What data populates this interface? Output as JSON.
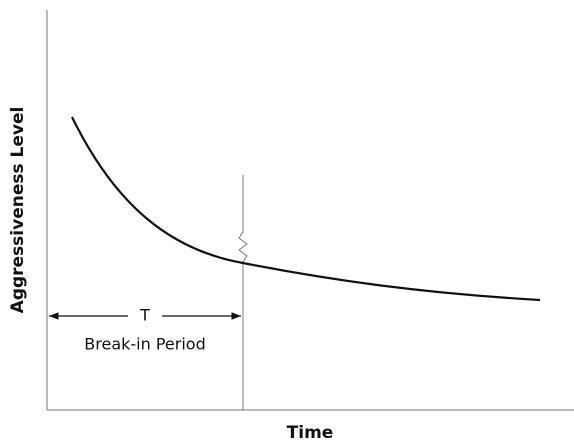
{
  "axes": {
    "x_label": "Time",
    "y_label": "Aggressiveness Level"
  },
  "annotation": {
    "symbol": "T",
    "label": "Break-in Period"
  }
}
